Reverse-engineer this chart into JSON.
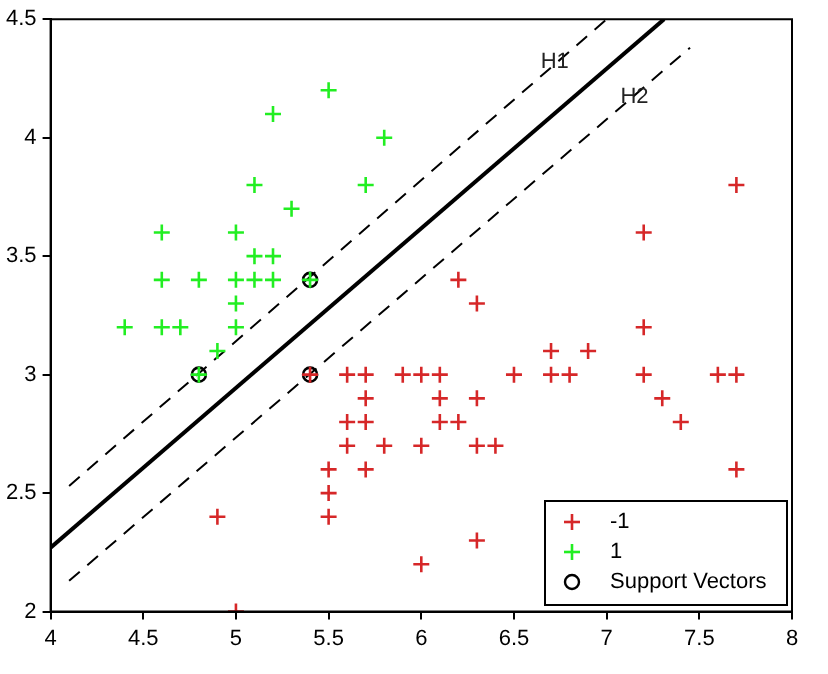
{
  "chart_data": {
    "type": "scatter",
    "xlim": [
      4,
      8
    ],
    "ylim": [
      2,
      4.5
    ],
    "xticks": [
      4,
      4.5,
      5,
      5.5,
      6,
      6.5,
      7,
      7.5,
      8
    ],
    "yticks": [
      2,
      2.5,
      3,
      3.5,
      4,
      4.5
    ],
    "grid": false,
    "legend": "bottom right",
    "annotations": [
      {
        "text": "H1",
        "x": 6.72,
        "y": 4.32
      },
      {
        "text": "H2",
        "x": 7.15,
        "y": 4.17
      }
    ],
    "series": [
      {
        "name": "-1",
        "color": "#d62728",
        "marker": "cross",
        "x": [
          7.7,
          7.2,
          6.2,
          6.3,
          7.2,
          6.7,
          6.9,
          5.6,
          5.7,
          5.9,
          6.0,
          6.1,
          6.5,
          6.7,
          6.8,
          7.2,
          7.6,
          7.7,
          5.7,
          6.1,
          6.3,
          7.3,
          5.6,
          5.7,
          6.1,
          6.2,
          7.4,
          5.6,
          5.8,
          6.0,
          6.3,
          6.4,
          5.5,
          5.7,
          7.7,
          5.5,
          4.9,
          5.5,
          6.3,
          6.0,
          5.0,
          5.4
        ],
        "values": [
          3.8,
          3.6,
          3.4,
          3.3,
          3.2,
          3.1,
          3.1,
          3.0,
          3.0,
          3.0,
          3.0,
          3.0,
          3.0,
          3.0,
          3.0,
          3.0,
          3.0,
          3.0,
          2.9,
          2.9,
          2.9,
          2.9,
          2.8,
          2.8,
          2.8,
          2.8,
          2.8,
          2.7,
          2.7,
          2.7,
          2.7,
          2.7,
          2.6,
          2.6,
          2.6,
          2.5,
          2.4,
          2.4,
          2.3,
          2.2,
          2.0,
          3.0
        ]
      },
      {
        "name": "1",
        "color": "#22ee22",
        "marker": "cross",
        "x": [
          5.5,
          5.2,
          5.8,
          5.7,
          5.1,
          5.3,
          4.6,
          5.0,
          5.1,
          5.2,
          4.6,
          4.8,
          5.0,
          5.1,
          5.2,
          5.4,
          5.0,
          4.4,
          4.6,
          4.7,
          5.0,
          4.9,
          4.8
        ],
        "values": [
          4.2,
          4.1,
          4.0,
          3.8,
          3.8,
          3.7,
          3.6,
          3.6,
          3.5,
          3.5,
          3.4,
          3.4,
          3.4,
          3.4,
          3.4,
          3.4,
          3.3,
          3.2,
          3.2,
          3.2,
          3.2,
          3.1,
          3.0
        ]
      },
      {
        "name": "Support Vectors",
        "color": "#000000",
        "marker": "circle",
        "x": [
          4.8,
          5.4,
          5.4
        ],
        "values": [
          3.0,
          3.4,
          3.0
        ]
      },
      {
        "type": "line",
        "color": "#000000",
        "line_style": "solid",
        "marker": "none",
        "x": [
          4,
          7.31
        ],
        "values": [
          2.27,
          4.5
        ]
      },
      {
        "type": "line",
        "color": "#000000",
        "line_style": "dashed",
        "marker": "none",
        "x": [
          4.1,
          7.0
        ],
        "values": [
          2.53,
          4.5
        ]
      },
      {
        "type": "line",
        "color": "#000000",
        "line_style": "dashed",
        "marker": "none",
        "x": [
          4.1,
          7.45
        ],
        "values": [
          2.13,
          4.38
        ]
      }
    ]
  }
}
